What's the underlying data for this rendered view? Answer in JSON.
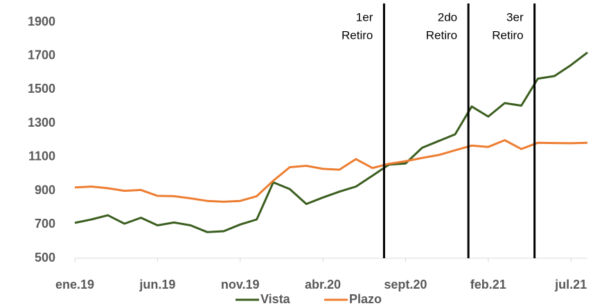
{
  "chart_data": {
    "type": "line",
    "categories": [
      "ene.19",
      null,
      null,
      null,
      null,
      "jun.19",
      null,
      null,
      null,
      null,
      "nov.19",
      null,
      null,
      null,
      null,
      "abr.20",
      null,
      null,
      null,
      null,
      "sept.20",
      null,
      null,
      null,
      null,
      "feb.21",
      null,
      null,
      null,
      null,
      "jul.21",
      null
    ],
    "series": [
      {
        "name": "Vista",
        "color": "#3b5e1f",
        "values": [
          710,
          730,
          755,
          705,
          740,
          695,
          712,
          695,
          655,
          660,
          700,
          730,
          950,
          910,
          822,
          860,
          895,
          925,
          990,
          1055,
          1062,
          1155,
          1195,
          1235,
          1400,
          1340,
          1420,
          1405,
          1565,
          1580,
          1645,
          1720
        ]
      },
      {
        "name": "Plazo",
        "color": "#ed7d31",
        "values": [
          920,
          925,
          915,
          900,
          905,
          870,
          868,
          855,
          840,
          835,
          840,
          868,
          960,
          1040,
          1048,
          1030,
          1025,
          1088,
          1035,
          1060,
          1075,
          1095,
          1112,
          1140,
          1168,
          1160,
          1200,
          1148,
          1185,
          1183,
          1182,
          1185
        ]
      }
    ],
    "ylim": [
      500,
      1900
    ],
    "yticks": [
      500,
      700,
      900,
      1100,
      1300,
      1500,
      1700,
      1900
    ],
    "grid": false,
    "legend": "bottom",
    "annotations": [
      {
        "x": 18.7,
        "lines": [
          "1er",
          "Retiro"
        ]
      },
      {
        "x": 23.8,
        "lines": [
          "2do",
          "Retiro"
        ]
      },
      {
        "x": 27.8,
        "lines": [
          "3er",
          "Retiro"
        ]
      }
    ]
  }
}
